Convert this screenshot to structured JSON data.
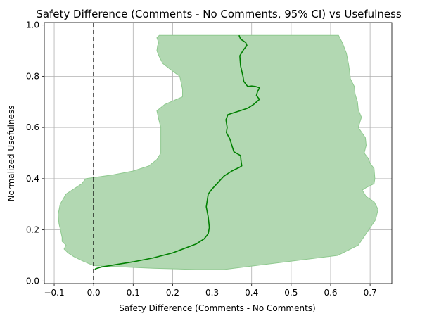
{
  "chart_data": {
    "type": "line",
    "title": "Safety Difference (Comments - No Comments, 95% CI) vs Usefulness",
    "xlabel": "Safety Difference (Comments - No Comments)",
    "ylabel": "Normalized Usefulness",
    "xlim": [
      -0.125,
      0.755
    ],
    "ylim": [
      -0.01,
      1.01
    ],
    "xticks": [
      -0.1,
      0.0,
      0.1,
      0.2,
      0.3,
      0.4,
      0.5,
      0.6,
      0.7
    ],
    "xtick_labels": [
      "−0.1",
      "0.0",
      "0.1",
      "0.2",
      "0.3",
      "0.4",
      "0.5",
      "0.6",
      "0.7"
    ],
    "yticks": [
      0.0,
      0.2,
      0.4,
      0.6,
      0.8,
      1.0
    ],
    "ytick_labels": [
      "0.0",
      "0.2",
      "0.4",
      "0.6",
      "0.8",
      "1.0"
    ],
    "grid": true,
    "colors": {
      "line": "#008000",
      "band": "#b2d8b2",
      "band_edge": "#8fc98f",
      "reference": "#000000",
      "grid": "#b0b0b0"
    },
    "reference_line": {
      "x": 0.0,
      "style": "dashed"
    },
    "series": [
      {
        "x": [
          0.368,
          0.372,
          0.385,
          0.388,
          0.38,
          0.37,
          0.372,
          0.378,
          0.38,
          0.39,
          0.4,
          0.41,
          0.42,
          0.415,
          0.412,
          0.42,
          0.405,
          0.39,
          0.37,
          0.34,
          0.335,
          0.338,
          0.336,
          0.345,
          0.35,
          0.355,
          0.372,
          0.373,
          0.375,
          0.37,
          0.35,
          0.33,
          0.315,
          0.3,
          0.29,
          0.285,
          0.29,
          0.293,
          0.29,
          0.28,
          0.26,
          0.2,
          0.15,
          0.1,
          0.06,
          0.02,
          0.005,
          0.003
        ],
        "y": [
          0.96,
          0.945,
          0.932,
          0.92,
          0.905,
          0.88,
          0.84,
          0.8,
          0.78,
          0.76,
          0.762,
          0.76,
          0.755,
          0.74,
          0.725,
          0.71,
          0.69,
          0.675,
          0.665,
          0.65,
          0.63,
          0.6,
          0.58,
          0.555,
          0.53,
          0.505,
          0.49,
          0.47,
          0.45,
          0.445,
          0.43,
          0.41,
          0.385,
          0.36,
          0.34,
          0.29,
          0.25,
          0.21,
          0.185,
          0.165,
          0.145,
          0.11,
          0.09,
          0.075,
          0.065,
          0.055,
          0.048,
          0.045
        ]
      }
    ],
    "confidence_band": {
      "lower": {
        "x": [
          0.166,
          0.16,
          0.165,
          0.162,
          0.16,
          0.165,
          0.175,
          0.2,
          0.218,
          0.225,
          0.225,
          0.18,
          0.16,
          0.165,
          0.17,
          0.17,
          0.16,
          0.14,
          0.1,
          0.05,
          -0.02,
          -0.03,
          -0.05,
          -0.07,
          -0.085,
          -0.09,
          -0.088,
          -0.085,
          -0.08,
          -0.08,
          -0.07,
          -0.075,
          -0.065,
          -0.05,
          -0.03,
          0.0,
          0.15,
          0.26,
          0.33
        ],
        "y": [
          0.96,
          0.95,
          0.93,
          0.92,
          0.9,
          0.88,
          0.85,
          0.82,
          0.8,
          0.75,
          0.72,
          0.69,
          0.665,
          0.63,
          0.6,
          0.5,
          0.475,
          0.45,
          0.43,
          0.415,
          0.4,
          0.38,
          0.36,
          0.34,
          0.3,
          0.26,
          0.225,
          0.205,
          0.17,
          0.155,
          0.14,
          0.125,
          0.11,
          0.095,
          0.08,
          0.06,
          0.05,
          0.045,
          0.045
        ]
      },
      "upper": {
        "x": [
          0.62,
          0.63,
          0.64,
          0.645,
          0.648,
          0.65,
          0.66,
          0.662,
          0.668,
          0.67,
          0.678,
          0.67,
          0.688,
          0.69,
          0.685,
          0.695,
          0.7,
          0.71,
          0.712,
          0.71,
          0.69,
          0.68,
          0.69,
          0.71,
          0.72,
          0.714,
          0.67,
          0.618,
          0.33
        ],
        "y": [
          0.96,
          0.93,
          0.89,
          0.85,
          0.82,
          0.79,
          0.76,
          0.73,
          0.7,
          0.67,
          0.64,
          0.6,
          0.56,
          0.53,
          0.5,
          0.48,
          0.46,
          0.44,
          0.4,
          0.38,
          0.365,
          0.355,
          0.33,
          0.31,
          0.28,
          0.24,
          0.14,
          0.1,
          0.045
        ]
      }
    }
  }
}
